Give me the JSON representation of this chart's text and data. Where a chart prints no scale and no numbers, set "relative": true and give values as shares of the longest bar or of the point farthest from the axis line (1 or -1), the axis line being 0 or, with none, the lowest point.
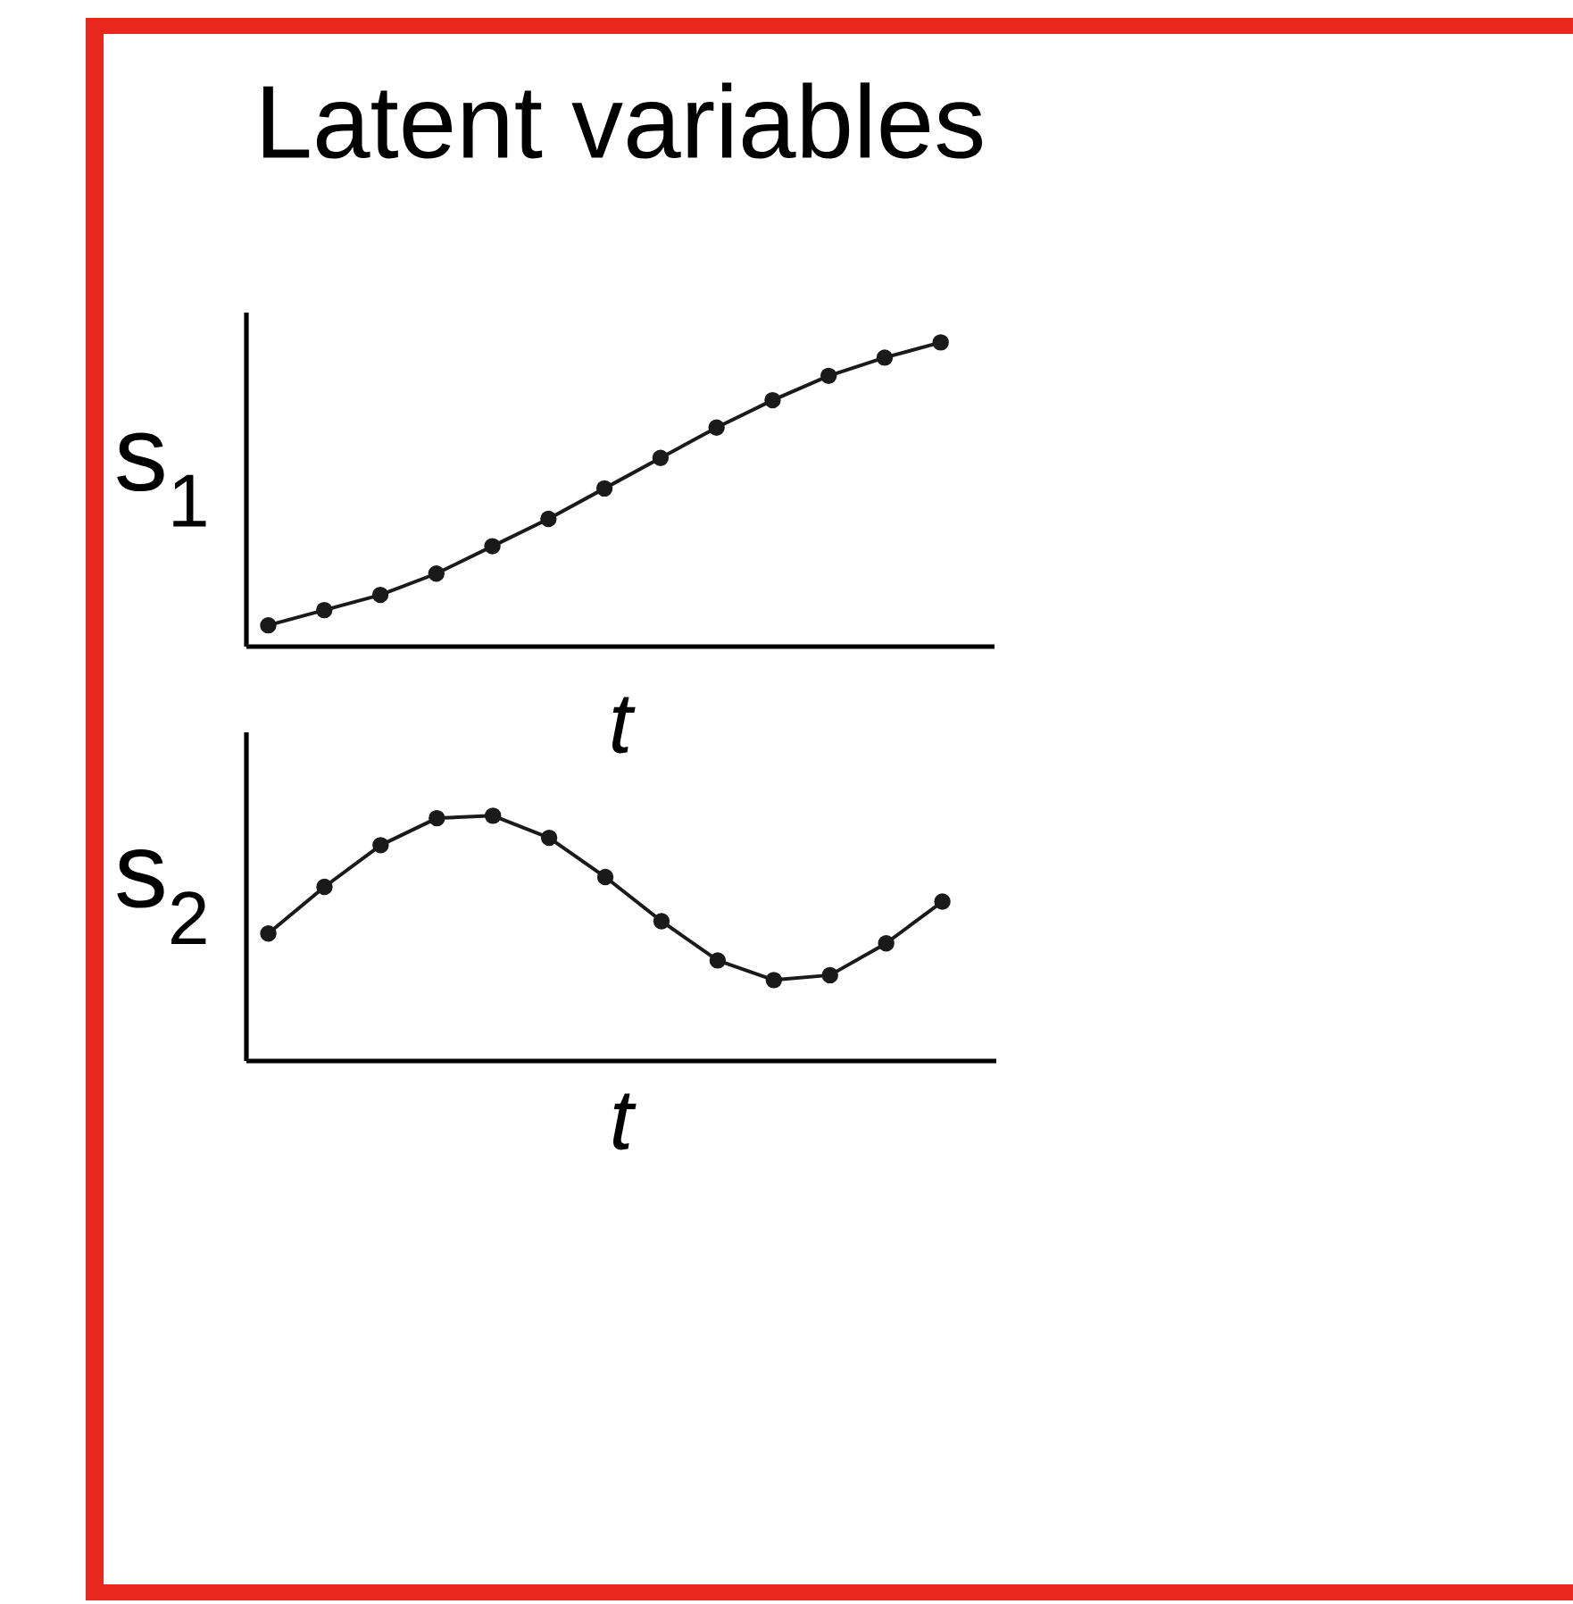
{
  "chart_data": [
    {
      "type": "line",
      "title": "Latent variables",
      "xlabel": "t",
      "ylabel": "s$_{1}$",
      "relative": true,
      "marker": "circle",
      "categories": [
        null,
        null,
        null,
        null,
        null,
        null,
        null,
        null,
        null,
        null,
        null,
        null,
        null
      ],
      "series": [
        {
          "color": "#1a1a1a",
          "values": [
            0.07,
            0.12,
            0.17,
            0.24,
            0.33,
            0.42,
            0.52,
            0.62,
            0.72,
            0.81,
            0.89,
            0.95,
            1
          ]
        }
      ]
    },
    {
      "type": "line",
      "xlabel": "t",
      "ylabel": "s$_{2}$",
      "relative": true,
      "marker": "circle",
      "categories": [
        null,
        null,
        null,
        null,
        null,
        null,
        null,
        null,
        null,
        null,
        null,
        null,
        null
      ],
      "series": [
        {
          "color": "#1a1a1a",
          "values": [
            0.52,
            0.71,
            0.88,
            0.99,
            1,
            0.91,
            0.75,
            0.57,
            0.41,
            0.33,
            0.35,
            0.48,
            0.65
          ]
        }
      ]
    }
  ]
}
